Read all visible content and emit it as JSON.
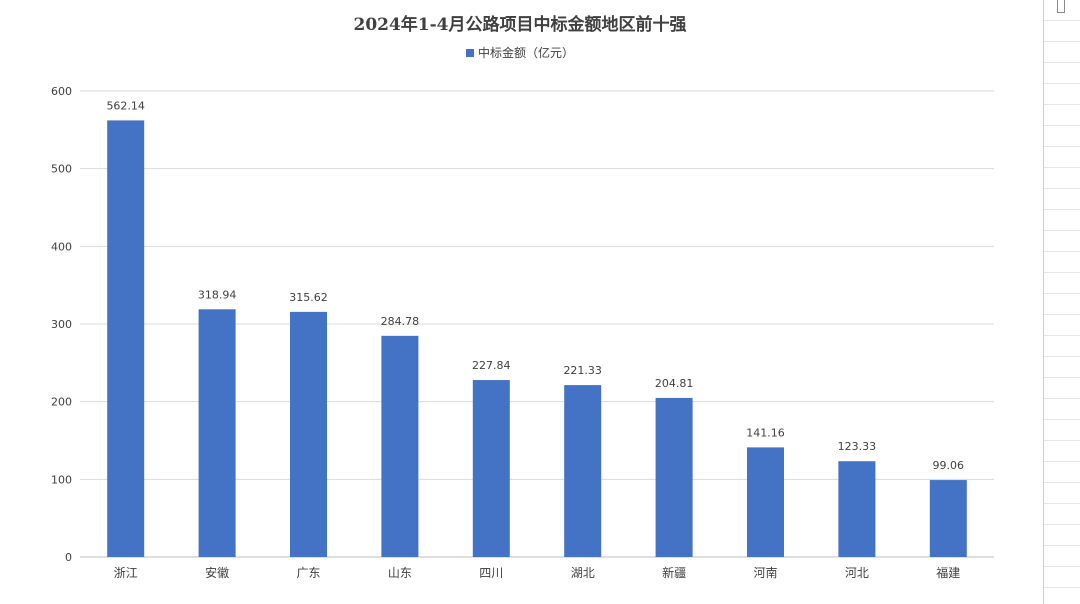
{
  "chart_data": {
    "type": "bar",
    "title": "2024年1-4月公路项目中标金额地区前十强",
    "categories": [
      "浙江",
      "安徽",
      "广东",
      "山东",
      "四川",
      "湖北",
      "新疆",
      "河南",
      "河北",
      "福建"
    ],
    "series": [
      {
        "name": "中标金额（亿元）",
        "values": [
          562.14,
          318.94,
          315.62,
          284.78,
          227.84,
          221.33,
          204.81,
          141.16,
          123.33,
          99.06
        ],
        "labels": [
          "562.14",
          "318.94",
          "315.62",
          "284.78",
          "227.84",
          "221.33",
          "204.81",
          "141.16",
          "123.33",
          "99.06"
        ]
      }
    ],
    "ylim": [
      0,
      600
    ],
    "yticks": [
      0,
      100,
      200,
      300,
      400,
      500,
      600
    ],
    "grid": true,
    "legend": "top",
    "bar_color": "#4472c4"
  }
}
